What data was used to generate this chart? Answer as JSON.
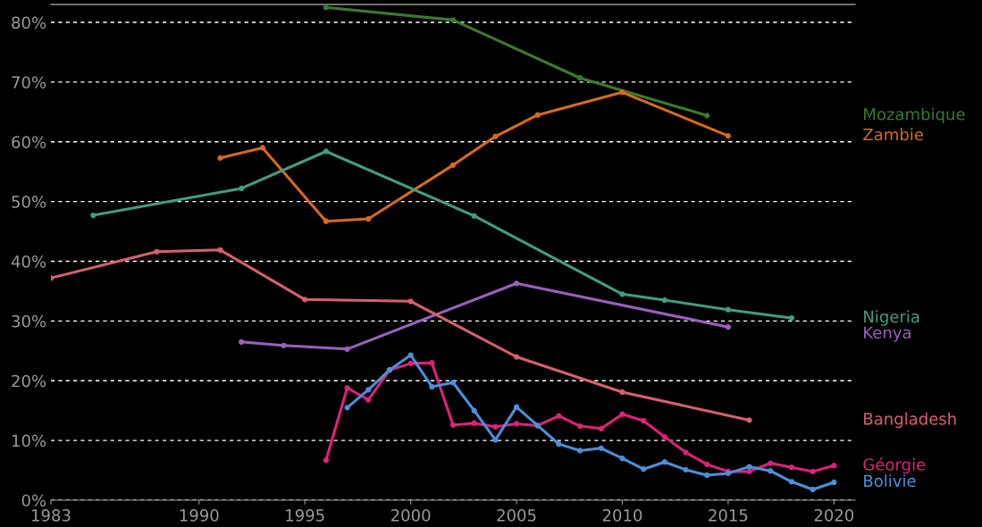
{
  "chart_data": {
    "type": "line",
    "xlim": [
      1983,
      2021
    ],
    "xticks": [
      1983,
      1990,
      1995,
      2000,
      2005,
      2010,
      2015,
      2020
    ],
    "ylim": [
      0,
      83
    ],
    "yticks": [
      {
        "value": 0,
        "label": "0%"
      },
      {
        "value": 10,
        "label": "10%"
      },
      {
        "value": 20,
        "label": "20%"
      },
      {
        "value": 30,
        "label": "30%"
      },
      {
        "value": 40,
        "label": "40%"
      },
      {
        "value": 50,
        "label": "50%"
      },
      {
        "value": 60,
        "label": "60%"
      },
      {
        "value": 70,
        "label": "70%"
      },
      {
        "value": 80,
        "label": "80%"
      }
    ],
    "grid": "y",
    "marker": "circle",
    "line_style": "solid",
    "series": [
      {
        "name": "Mozambique",
        "color": "#3b7a2e",
        "x": [
          1996,
          2002,
          2008,
          2014
        ],
        "values": [
          82.5,
          80.4,
          70.7,
          64.4
        ]
      },
      {
        "name": "Zambie",
        "color": "#d9691c",
        "x": [
          1991,
          1993,
          1996,
          1998,
          2002,
          2004,
          2006,
          2010,
          2015
        ],
        "values": [
          57.3,
          59.0,
          46.7,
          47.1,
          56.1,
          60.9,
          64.5,
          68.3,
          61.0
        ]
      },
      {
        "name": "Nigeria",
        "color": "#3f9f7f",
        "x": [
          1985,
          1992,
          1996,
          2003,
          2010,
          2012,
          2015,
          2018
        ],
        "values": [
          47.7,
          52.2,
          58.4,
          47.6,
          34.5,
          33.5,
          31.9,
          30.5
        ]
      },
      {
        "name": "Kenya",
        "color": "#9b5fc0",
        "x": [
          1992,
          1994,
          1997,
          2005,
          2015
        ],
        "values": [
          26.5,
          25.9,
          25.3,
          36.3,
          29.0
        ]
      },
      {
        "name": "Bangladesh",
        "color": "#d95f6e",
        "x": [
          1983,
          1988,
          1991,
          1995,
          2000,
          2005,
          2010,
          2016
        ],
        "values": [
          37.2,
          41.6,
          41.9,
          33.6,
          33.3,
          24.0,
          18.1,
          13.4
        ]
      },
      {
        "name": "Géorgie",
        "color": "#e0207a",
        "x": [
          1996,
          1997,
          1998,
          1999,
          2000,
          2001,
          2002,
          2003,
          2004,
          2005,
          2006,
          2007,
          2008,
          2009,
          2010,
          2011,
          2012,
          2013,
          2014,
          2015,
          2016,
          2017,
          2018,
          2019,
          2020
        ],
        "values": [
          6.7,
          18.8,
          16.8,
          21.8,
          22.9,
          23.0,
          12.6,
          12.9,
          12.3,
          12.8,
          12.5,
          14.1,
          12.4,
          12.0,
          14.4,
          13.3,
          10.6,
          8.0,
          6.0,
          4.8,
          4.8,
          6.2,
          5.5,
          4.8,
          5.8
        ]
      },
      {
        "name": "Bolivie",
        "color": "#4a90d9",
        "x": [
          1997,
          1998,
          1999,
          2000,
          2001,
          2002,
          2003,
          2004,
          2005,
          2006,
          2007,
          2008,
          2009,
          2010,
          2011,
          2012,
          2013,
          2014,
          2015,
          2016,
          2017,
          2018,
          2019,
          2020
        ],
        "values": [
          15.5,
          18.5,
          21.8,
          24.3,
          19.0,
          19.7,
          15.0,
          10.1,
          15.6,
          12.5,
          9.4,
          8.3,
          8.7,
          7.0,
          5.2,
          6.4,
          5.1,
          4.2,
          4.5,
          5.6,
          4.9,
          3.1,
          1.8,
          3.0
        ]
      }
    ]
  }
}
